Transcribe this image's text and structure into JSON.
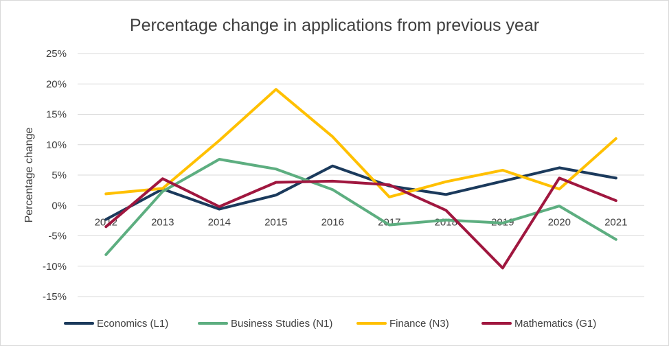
{
  "chart_data": {
    "type": "line",
    "title": "Percentage change in applications from previous year",
    "xlabel": "",
    "ylabel": "Percentage change",
    "ylim": [
      -15,
      25
    ],
    "y_ticks": [
      "-15%",
      "-10%",
      "-5%",
      "0%",
      "5%",
      "10%",
      "15%",
      "20%",
      "25%"
    ],
    "y_tick_values": [
      -15,
      -10,
      -5,
      0,
      5,
      10,
      15,
      20,
      25
    ],
    "categories": [
      "2012",
      "2013",
      "2014",
      "2015",
      "2016",
      "2017",
      "2018",
      "2019",
      "2020",
      "2021"
    ],
    "grid": true,
    "legend_position": "bottom",
    "series": [
      {
        "name": "Economics (L1)",
        "color": "#1b3a5c",
        "values": [
          -2.3,
          2.7,
          -0.6,
          1.7,
          6.5,
          3.2,
          1.8,
          4.0,
          6.2,
          4.5
        ]
      },
      {
        "name": "Business Studies (N1)",
        "color": "#5dae80",
        "values": [
          -8.1,
          2.3,
          7.6,
          6.0,
          2.6,
          -3.2,
          -2.4,
          -2.9,
          -0.1,
          -5.6
        ]
      },
      {
        "name": "Finance (N3)",
        "color": "#ffc000",
        "values": [
          1.9,
          2.8,
          10.7,
          19.1,
          11.3,
          1.4,
          3.9,
          5.8,
          2.7,
          11.0
        ]
      },
      {
        "name": "Mathematics (G1)",
        "color": "#a0173f",
        "values": [
          -3.5,
          4.4,
          -0.2,
          3.8,
          4.0,
          3.4,
          -0.8,
          -10.3,
          4.5,
          0.8
        ]
      }
    ]
  }
}
